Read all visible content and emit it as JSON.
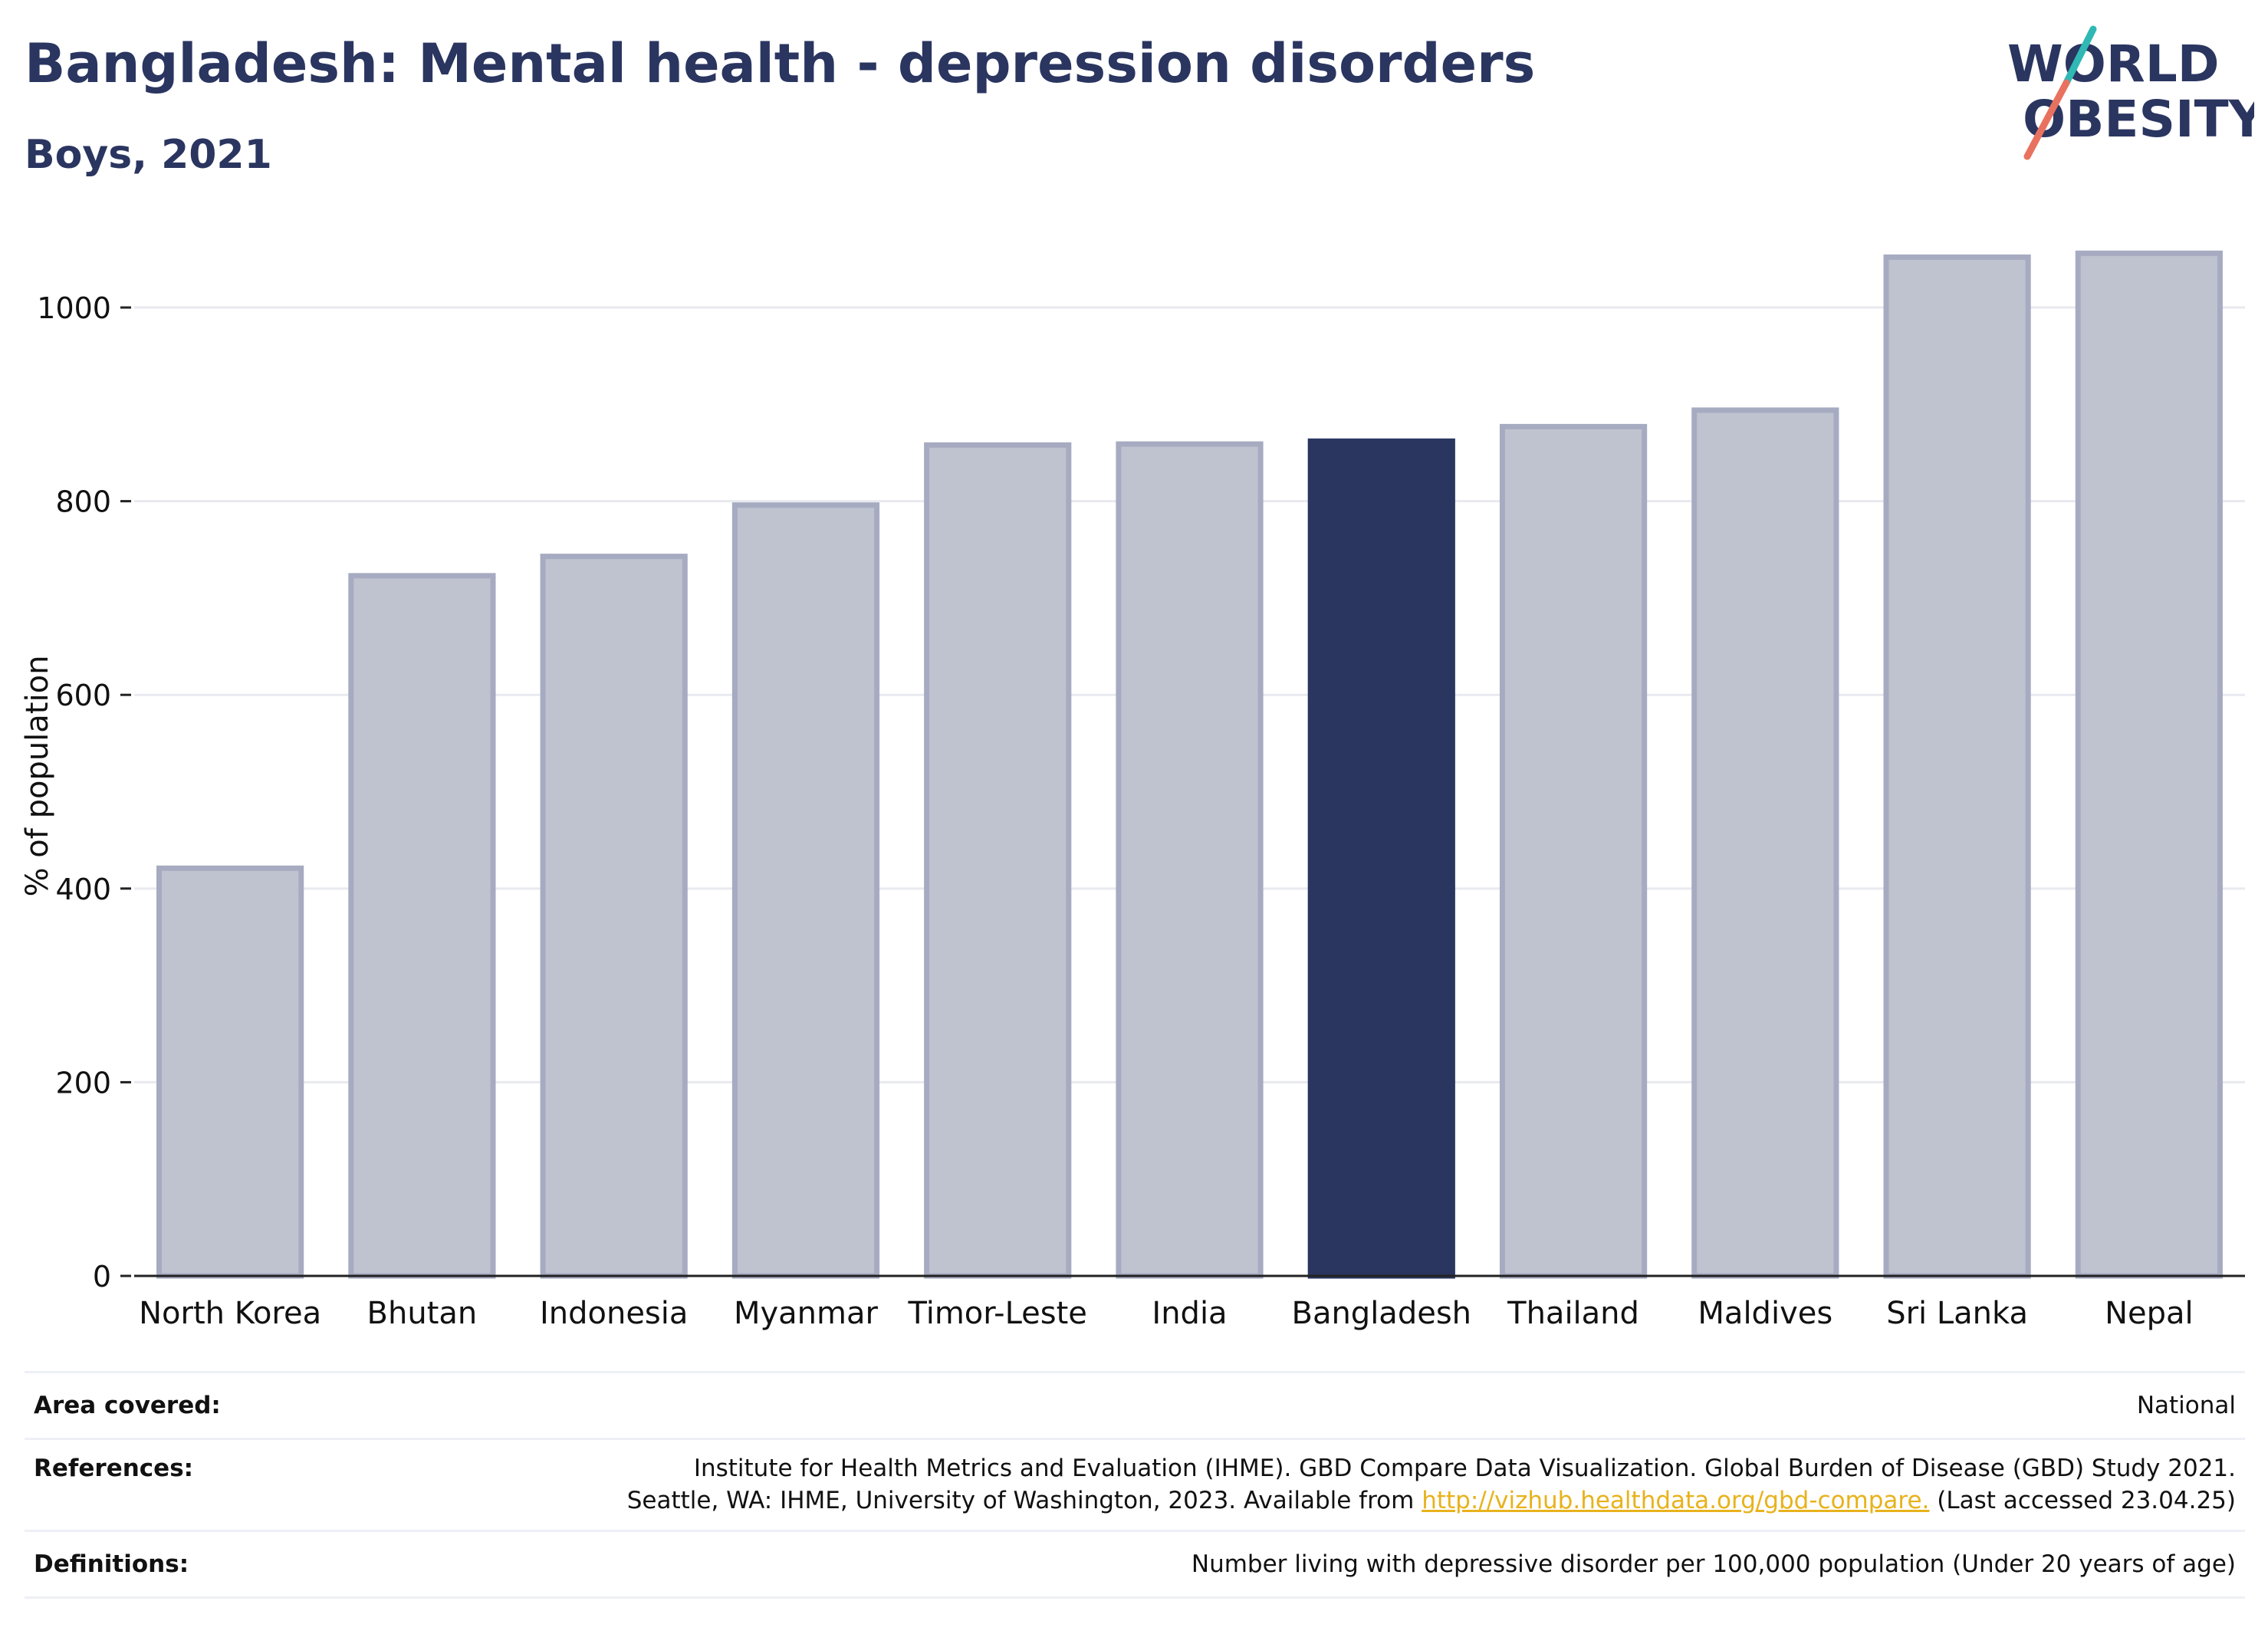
{
  "header": {
    "title": "Bangladesh: Mental health - depression disorders",
    "subtitle": "Boys, 2021",
    "logo_line1": "WORLD",
    "logo_line2": "OBESITY"
  },
  "colors": {
    "highlight": "#2a3560",
    "bar": "#bfc3cf",
    "bar_edge": "#a6abc1",
    "text": "#2a3560",
    "link": "#e8b21c"
  },
  "chart_data": {
    "type": "bar",
    "categories": [
      "North Korea",
      "Bhutan",
      "Indonesia",
      "Myanmar",
      "Timor-Leste",
      "India",
      "Bangladesh",
      "Thailand",
      "Maldives",
      "Sri Lanka",
      "Nepal"
    ],
    "values": [
      421,
      723,
      743,
      796,
      858,
      859,
      862,
      877,
      894,
      1052,
      1056
    ],
    "highlight": "Bangladesh",
    "ylabel": "% of population",
    "ylim": [
      0,
      1080
    ],
    "yticks": [
      0,
      200,
      400,
      600,
      800,
      1000
    ],
    "grid": true
  },
  "meta": {
    "area": {
      "label": "Area covered:",
      "value": "National"
    },
    "references": {
      "label": "References:",
      "line1": "Institute for Health Metrics and Evaluation (IHME). GBD Compare Data Visualization. Global Burden of Disease (GBD) Study 2021.",
      "line2_pre": "Seattle, WA: IHME, University of Washington, 2023. Available from",
      "link": "http://vizhub.healthdata.org/gbd-compare.",
      "line2_post": "(Last accessed 23.04.25)"
    },
    "definitions": {
      "label": "Definitions:",
      "value": "Number living with depressive disorder per 100,000 population (Under 20 years of age)"
    }
  }
}
